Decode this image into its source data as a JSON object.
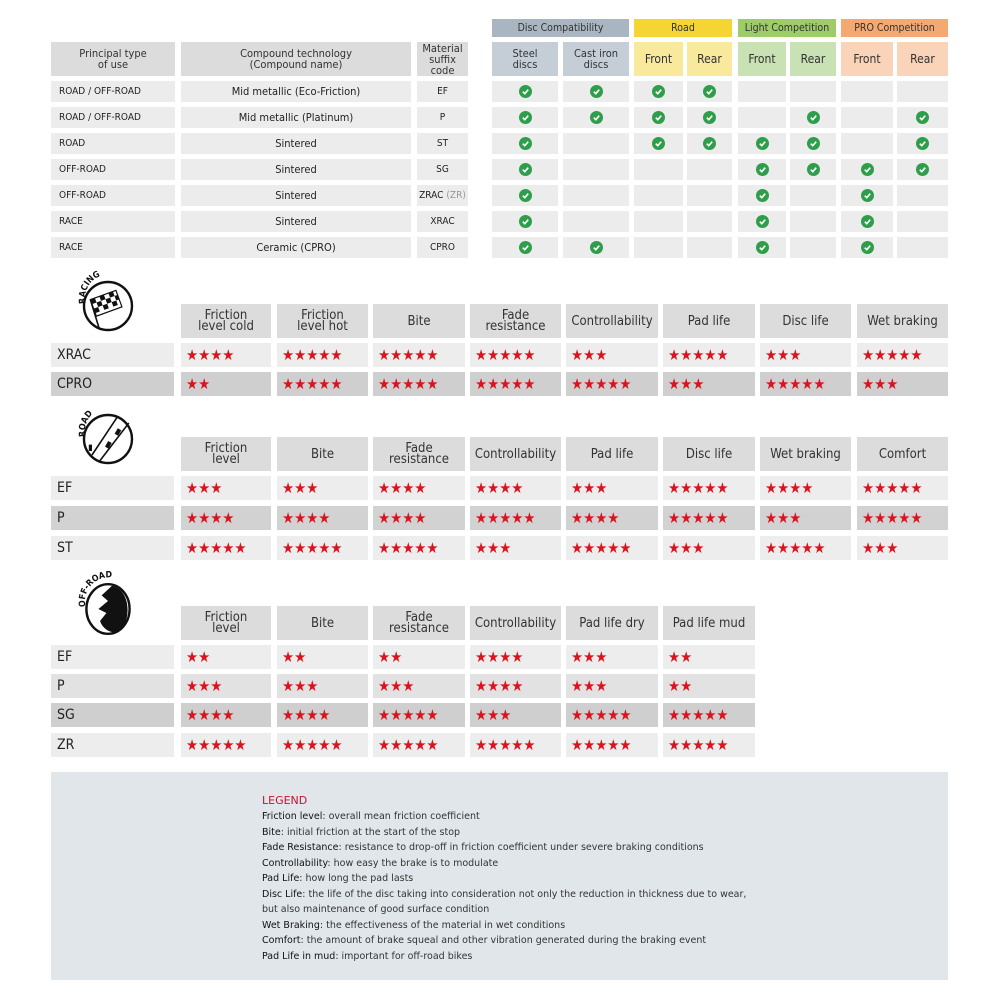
{
  "compat": {
    "groups": [
      {
        "label": "Disc Compatibility",
        "color": "#a9b5c0",
        "sub_color": "#c5ced6"
      },
      {
        "label": "Road",
        "color": "#f4d534",
        "sub_color": "#f8e99d"
      },
      {
        "label": "Light Competition",
        "color": "#9dcc68",
        "sub_color": "#c9e2b3"
      },
      {
        "label": "PRO Competition",
        "color": "#f4a872",
        "sub_color": "#f9d4b8"
      }
    ],
    "headers": [
      "Principal type\nof use",
      "Compound technology\n(Compound name)",
      "Material\nsuffix code",
      "Steel\ndiscs",
      "Cast iron\ndiscs",
      "Front",
      "Rear",
      "Front",
      "Rear",
      "Front",
      "Rear"
    ],
    "rows": [
      {
        "use": "ROAD / OFF-ROAD",
        "compound": "Mid metallic (Eco-Friction)",
        "code": "EF",
        "code_extra": "",
        "checks": [
          1,
          1,
          1,
          1,
          0,
          0,
          0,
          0
        ]
      },
      {
        "use": "ROAD / OFF-ROAD",
        "compound": "Mid metallic (Platinum)",
        "code": "P",
        "code_extra": "",
        "checks": [
          1,
          1,
          1,
          1,
          0,
          1,
          0,
          1
        ]
      },
      {
        "use": "ROAD",
        "compound": "Sintered",
        "code": "ST",
        "code_extra": "",
        "checks": [
          1,
          0,
          1,
          1,
          1,
          1,
          0,
          1
        ]
      },
      {
        "use": "OFF-ROAD",
        "compound": "Sintered",
        "code": "SG",
        "code_extra": "",
        "checks": [
          1,
          0,
          0,
          0,
          1,
          1,
          1,
          1
        ]
      },
      {
        "use": "OFF-ROAD",
        "compound": "Sintered",
        "code": "ZRAC",
        "code_extra": "(ZR)",
        "checks": [
          1,
          0,
          0,
          0,
          1,
          0,
          1,
          0
        ]
      },
      {
        "use": "RACE",
        "compound": "Sintered",
        "code": "XRAC",
        "code_extra": "",
        "checks": [
          1,
          0,
          0,
          0,
          1,
          0,
          1,
          0
        ]
      },
      {
        "use": "RACE",
        "compound": "Ceramic (CPRO)",
        "code": "CPRO",
        "code_extra": "",
        "checks": [
          1,
          1,
          0,
          0,
          1,
          0,
          1,
          0
        ]
      }
    ]
  },
  "ratings": [
    {
      "icon_label": "RACING",
      "icon": "checkered-flag-icon",
      "headers": [
        "Friction\nlevel cold",
        "Friction\nlevel hot",
        "Bite",
        "Fade\nresistance",
        "Controllability",
        "Pad life",
        "Disc life",
        "Wet braking"
      ],
      "rows": [
        {
          "label": "XRAC",
          "values": [
            4,
            5,
            5,
            5,
            3,
            5,
            3,
            5
          ]
        },
        {
          "label": "CPRO",
          "values": [
            2,
            5,
            5,
            5,
            5,
            3,
            5,
            3
          ]
        }
      ]
    },
    {
      "icon_label": "ROAD",
      "icon": "road-icon",
      "headers": [
        "Friction\nlevel",
        "Bite",
        "Fade\nresistance",
        "Controllability",
        "Pad life",
        "Disc life",
        "Wet braking",
        "Comfort"
      ],
      "rows": [
        {
          "label": "EF",
          "values": [
            3,
            3,
            4,
            4,
            3,
            5,
            4,
            5
          ]
        },
        {
          "label": "P",
          "values": [
            4,
            4,
            4,
            5,
            4,
            5,
            3,
            5
          ]
        },
        {
          "label": "ST",
          "values": [
            5,
            5,
            5,
            3,
            5,
            3,
            5,
            3
          ]
        }
      ]
    },
    {
      "icon_label": "OFF-ROAD",
      "icon": "mud-splash-icon",
      "headers": [
        "Friction\nlevel",
        "Bite",
        "Fade\nresistance",
        "Controllability",
        "Pad life dry",
        "Pad life mud"
      ],
      "rows": [
        {
          "label": "EF",
          "values": [
            2,
            2,
            2,
            4,
            3,
            2
          ]
        },
        {
          "label": "P",
          "values": [
            3,
            3,
            3,
            4,
            3,
            2
          ]
        },
        {
          "label": "SG",
          "values": [
            4,
            4,
            5,
            3,
            5,
            5
          ]
        },
        {
          "label": "ZR",
          "values": [
            5,
            5,
            5,
            5,
            5,
            5
          ]
        }
      ]
    }
  ],
  "legend": {
    "title": "LEGEND",
    "lines": [
      {
        "term": "Friction level",
        "text": ": overall mean friction coefficient"
      },
      {
        "term": "Bite",
        "text": ": initial friction at the start of the stop"
      },
      {
        "term": "Fade Resistance",
        "text": ": resistance to drop-off in friction coefficient under severe braking conditions"
      },
      {
        "term": "Controllability",
        "text": ": how easy the brake is to modulate"
      },
      {
        "term": "Pad Life",
        "text": ": how long the pad lasts"
      },
      {
        "term": "Disc Life",
        "text": ": the life of the disc taking into consideration not only the reduction in thickness due to wear,"
      },
      {
        "term": "",
        "text": "but also maintenance of good surface condition"
      },
      {
        "term": "Wet Braking",
        "text": ": the effectiveness of the material in wet conditions"
      },
      {
        "term": "Comfort",
        "text": ": the amount of brake squeal and other vibration generated during the braking event"
      },
      {
        "term": "Pad Life in mud",
        "text": ": important for off-road bikes"
      }
    ]
  },
  "colors": {
    "star": "#d9141e",
    "check": "#2f9e4b",
    "legend_title": "#c8102e",
    "legend_bg": "#e1e6ea"
  }
}
